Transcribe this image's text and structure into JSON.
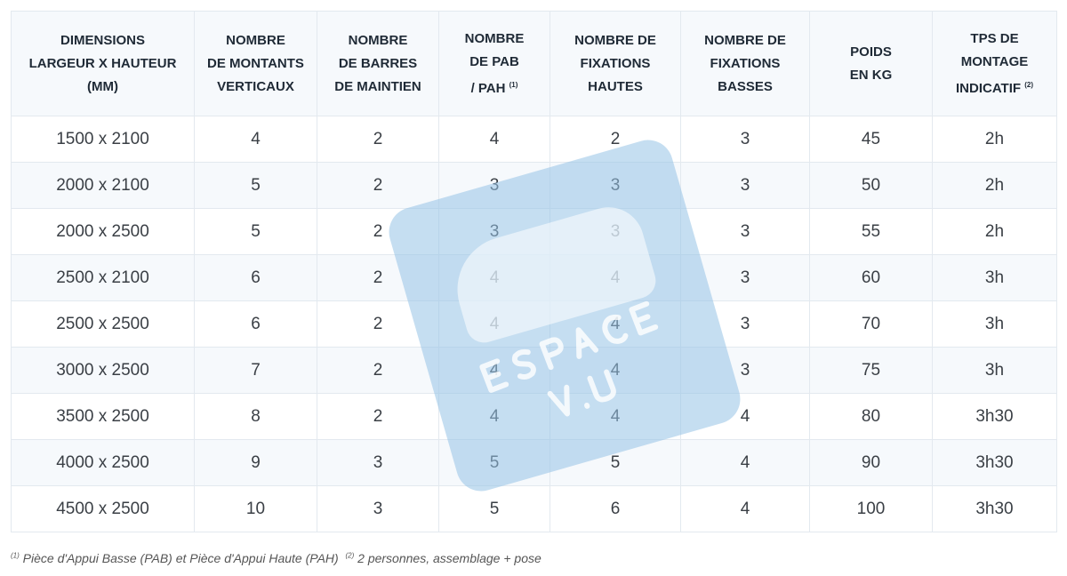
{
  "headers": [
    [
      "DIMENSIONS",
      "LARGEUR X HAUTEUR",
      "(MM)",
      ""
    ],
    [
      "NOMBRE",
      "DE MONTANTS",
      "VERTICAUX",
      ""
    ],
    [
      "NOMBRE",
      "DE BARRES",
      "DE MAINTIEN",
      ""
    ],
    [
      "NOMBRE",
      "DE PAB",
      "/ PAH",
      "(1)"
    ],
    [
      "NOMBRE DE",
      "FIXATIONS",
      "HAUTES",
      ""
    ],
    [
      "NOMBRE DE",
      "FIXATIONS",
      "BASSES",
      ""
    ],
    [
      "POIDS",
      "EN KG",
      "",
      ""
    ],
    [
      "TPS DE",
      "MONTAGE",
      "INDICATIF",
      "(2)"
    ]
  ],
  "rows": [
    [
      "1500 x 2100",
      "4",
      "2",
      "4",
      "2",
      "3",
      "45",
      "2h"
    ],
    [
      "2000 x 2100",
      "5",
      "2",
      "3",
      "3",
      "3",
      "50",
      "2h"
    ],
    [
      "2000 x 2500",
      "5",
      "2",
      "3",
      "3",
      "3",
      "55",
      "2h"
    ],
    [
      "2500 x 2100",
      "6",
      "2",
      "4",
      "4",
      "3",
      "60",
      "3h"
    ],
    [
      "2500 x 2500",
      "6",
      "2",
      "4",
      "4",
      "3",
      "70",
      "3h"
    ],
    [
      "3000 x 2500",
      "7",
      "2",
      "4",
      "4",
      "3",
      "75",
      "3h"
    ],
    [
      "3500 x 2500",
      "8",
      "2",
      "4",
      "4",
      "4",
      "80",
      "3h30"
    ],
    [
      "4000 x 2500",
      "9",
      "3",
      "5",
      "5",
      "4",
      "90",
      "3h30"
    ],
    [
      "4500 x 2500",
      "10",
      "3",
      "5",
      "6",
      "4",
      "100",
      "3h30"
    ]
  ],
  "footnote": {
    "m1": "(1)",
    "t1": "Pièce d'Appui Basse (PAB) et Pièce d'Appui Haute (PAH)",
    "m2": "(2)",
    "t2": "2 personnes, assemblage + pose"
  },
  "watermark": {
    "text": "ESPACE V.U",
    "color": "#96c3e6"
  }
}
